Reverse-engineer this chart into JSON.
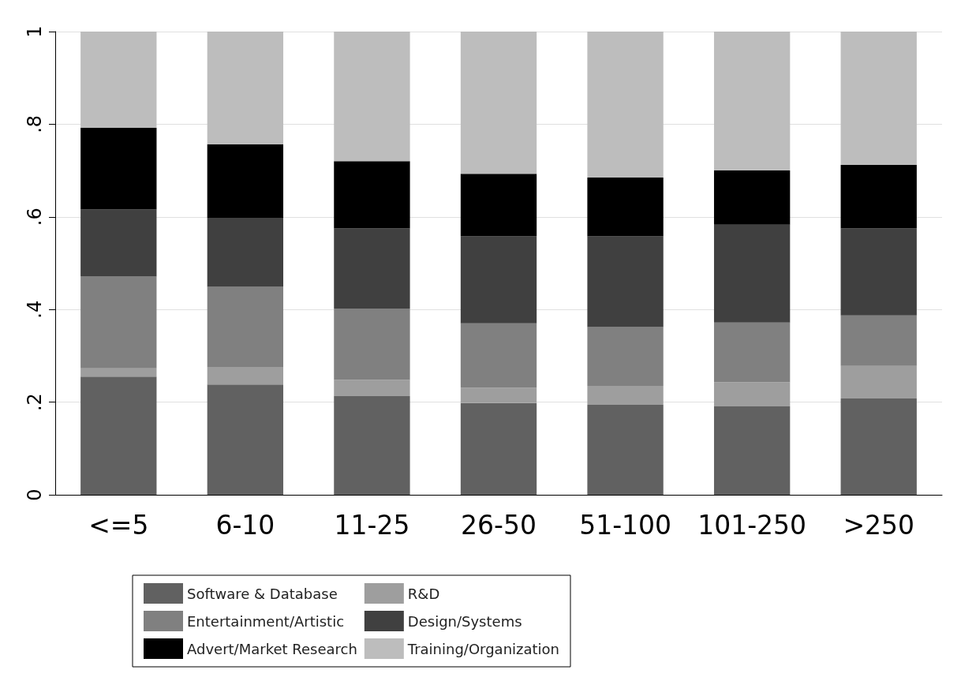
{
  "chart_data": {
    "type": "bar",
    "stacked": true,
    "categories": [
      "<=5",
      "6-10",
      "11-25",
      "26-50",
      "51-100",
      "101-250",
      ">250"
    ],
    "series": [
      {
        "name": "Software & Database",
        "color": "#616161",
        "values": [
          0.255,
          0.238,
          0.213,
          0.198,
          0.194,
          0.191,
          0.208
        ]
      },
      {
        "name": "R&D",
        "color": "#9e9e9e",
        "values": [
          0.018,
          0.038,
          0.035,
          0.033,
          0.041,
          0.052,
          0.07
        ]
      },
      {
        "name": "Entertainment/Artistic",
        "color": "#808080",
        "values": [
          0.198,
          0.173,
          0.154,
          0.139,
          0.127,
          0.129,
          0.109
        ]
      },
      {
        "name": "Design/Systems",
        "color": "#404040",
        "values": [
          0.145,
          0.149,
          0.173,
          0.188,
          0.196,
          0.211,
          0.188
        ]
      },
      {
        "name": "Advert/Market Research",
        "color": "#000000",
        "values": [
          0.176,
          0.159,
          0.145,
          0.135,
          0.127,
          0.117,
          0.137
        ]
      },
      {
        "name": "Training/Organization",
        "color": "#bdbdbd",
        "values": [
          0.208,
          0.243,
          0.28,
          0.307,
          0.315,
          0.3,
          0.288
        ]
      }
    ],
    "ylim": [
      0,
      1
    ],
    "yticks": [
      0,
      {
        "value": 0.2,
        "label": ".2"
      },
      {
        "value": 0.4,
        "label": ".4"
      },
      {
        "value": 0.6,
        "label": ".6"
      },
      {
        "value": 0.8,
        "label": ".8"
      },
      1
    ],
    "grid": "y",
    "legend": "bottom"
  }
}
